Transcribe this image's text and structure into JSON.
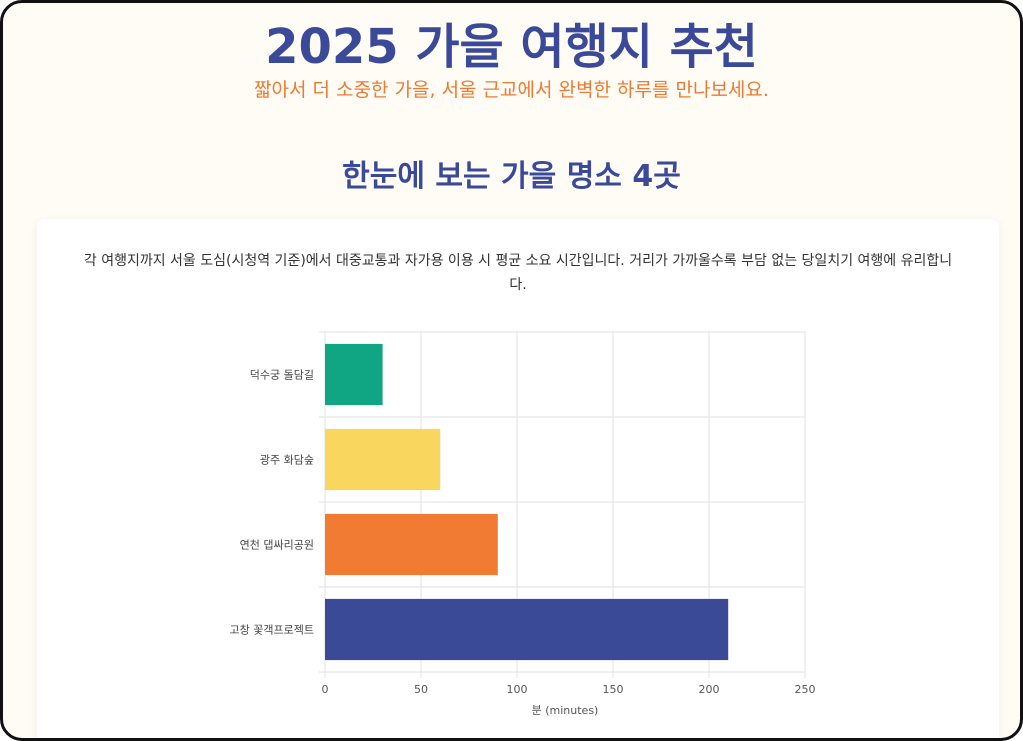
{
  "header": {
    "title": "2025 가을 여행지 추천",
    "subtitle": "짧아서 더 소중한 가을, 서울 근교에서 완벽한 하루를 만나보세요."
  },
  "section": {
    "title": "한눈에 보는 가을 명소 4곳",
    "description": "각 여행지까지 서울 도심(시청역 기준)에서 대중교통과 자가용 이용 시 평균 소요 시간입니다. 거리가 가까울수록 부담 없는 당일치기 여행에 유리합니다."
  },
  "chart_data": {
    "type": "bar",
    "orientation": "horizontal",
    "categories": [
      "덕수궁 돌담길",
      "광주 화담숲",
      "연천 댑싸리공원",
      "고창 꽃객프로젝트"
    ],
    "values": [
      30,
      60,
      90,
      210
    ],
    "colors": [
      "#11a683",
      "#f9d65e",
      "#f27b33",
      "#3b4a97"
    ],
    "xlabel": "분 (minutes)",
    "xlim": [
      0,
      250
    ],
    "xticks": [
      0,
      50,
      100,
      150,
      200,
      250
    ],
    "grid": true,
    "legend": "none"
  }
}
